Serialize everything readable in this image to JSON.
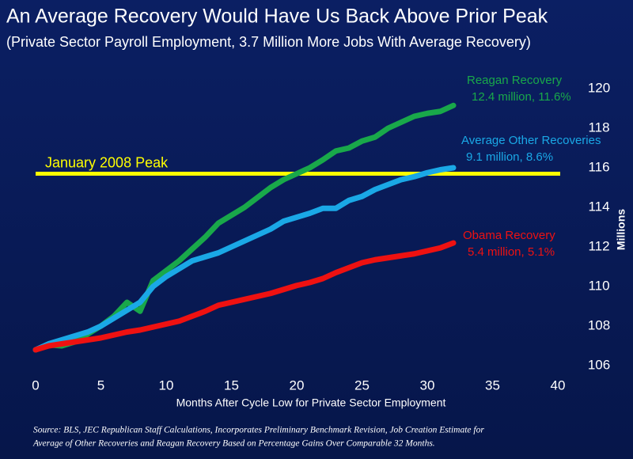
{
  "chart_data": {
    "type": "line",
    "title": "An Average Recovery Would Have Us Back Above Prior Peak",
    "subtitle": "(Private Sector Payroll Employment, 3.7 Million More Jobs With Average Recovery)",
    "x_label": "Months After Cycle Low for Private Sector Employment",
    "y_label": "Millions",
    "x": [
      0,
      1,
      2,
      3,
      4,
      5,
      6,
      7,
      8,
      9,
      10,
      11,
      12,
      13,
      14,
      15,
      16,
      17,
      18,
      19,
      20,
      21,
      22,
      23,
      24,
      25,
      26,
      27,
      28,
      29,
      30,
      31,
      32
    ],
    "series": [
      {
        "name": "Reagan Recovery",
        "end_label": "12.4 million, 11.6%",
        "color": "#19a84a",
        "values": [
          106.8,
          107.05,
          107.0,
          107.2,
          107.6,
          108.0,
          108.5,
          109.2,
          108.75,
          110.3,
          110.8,
          111.3,
          111.9,
          112.5,
          113.2,
          113.6,
          114.0,
          114.5,
          115.0,
          115.4,
          115.7,
          116.0,
          116.4,
          116.85,
          117.0,
          117.35,
          117.55,
          118.0,
          118.3,
          118.6,
          118.75,
          118.85,
          119.15
        ]
      },
      {
        "name": "Average Other Recoveries",
        "end_label": "9.1 million, 8.6%",
        "color": "#1aa8e6",
        "values": [
          106.8,
          107.1,
          107.3,
          107.5,
          107.7,
          108.0,
          108.4,
          108.8,
          109.2,
          110.0,
          110.5,
          110.9,
          111.3,
          111.5,
          111.7,
          112.0,
          112.3,
          112.6,
          112.9,
          113.3,
          113.5,
          113.7,
          113.95,
          113.95,
          114.35,
          114.55,
          114.9,
          115.15,
          115.4,
          115.55,
          115.75,
          115.9,
          116.0
        ]
      },
      {
        "name": "Obama Recovery",
        "end_label": "5.4 million, 5.1%",
        "color": "#ee1111",
        "values": [
          106.8,
          107.0,
          107.1,
          107.2,
          107.3,
          107.4,
          107.55,
          107.7,
          107.8,
          107.95,
          108.1,
          108.25,
          108.5,
          108.75,
          109.05,
          109.2,
          109.35,
          109.5,
          109.65,
          109.85,
          110.05,
          110.2,
          110.4,
          110.7,
          110.95,
          111.2,
          111.35,
          111.45,
          111.55,
          111.65,
          111.8,
          111.95,
          112.2
        ]
      }
    ],
    "reference_line": {
      "label": "January 2008 Peak",
      "value": 115.7,
      "color": "#ffff00"
    },
    "xlim": [
      0,
      40
    ],
    "xticks": [
      0,
      5,
      10,
      15,
      20,
      25,
      30,
      35,
      40
    ],
    "ylim": [
      106,
      120
    ],
    "yticks": [
      106,
      108,
      110,
      112,
      114,
      116,
      118,
      120
    ],
    "y_axis_side": "right",
    "grid": false,
    "source": [
      "Source:  BLS, JEC Republican Staff Calculations, Incorporates Preliminary Benchmark Revision, Job Creation Estimate for",
      "Average of Other Recoveries and Reagan Recovery Based on Percentage Gains Over Comparable 32 Months."
    ]
  }
}
